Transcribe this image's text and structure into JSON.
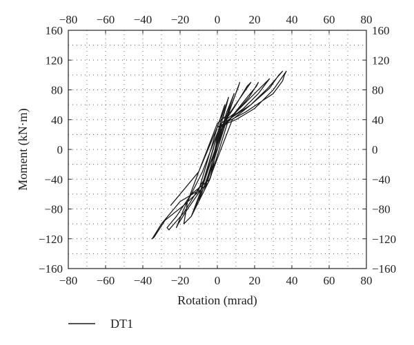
{
  "chart_data": {
    "type": "line",
    "title": "",
    "xlabel": "Rotation (mrad)",
    "ylabel": "Moment (kN·m)",
    "xlim": [
      -80,
      80
    ],
    "ylim": [
      -160,
      160
    ],
    "x_ticks": [
      -80,
      -60,
      -40,
      -20,
      0,
      20,
      40,
      60,
      80
    ],
    "y_ticks": [
      -160,
      -120,
      -80,
      -40,
      0,
      40,
      80,
      120,
      160
    ],
    "x_tick_labels": [
      "−80",
      "−60",
      "−40",
      "−20",
      "0",
      "20",
      "40",
      "60",
      "80"
    ],
    "y_tick_labels": [
      "−160",
      "−120",
      "−80",
      "−40",
      "0",
      "40",
      "80",
      "120",
      "160"
    ],
    "grid": "dotted",
    "legend_position": "bottom-left",
    "series": [
      {
        "name": "DT1",
        "color": "#1a1a1a",
        "x": [
          0,
          2,
          4,
          3,
          0,
          -2,
          -4,
          -3,
          0,
          4,
          6,
          5,
          1,
          -4,
          -7,
          -6,
          -2,
          5,
          9,
          8,
          3,
          -5,
          -10,
          -9,
          -5,
          0,
          7,
          12,
          11,
          6,
          -4,
          -12,
          -14,
          -10,
          -4,
          2,
          10,
          16,
          18,
          13,
          7,
          0,
          -10,
          -16,
          -18,
          -14,
          -8,
          0,
          8,
          16,
          21,
          22,
          17,
          10,
          2,
          -8,
          -18,
          -22,
          -21,
          -16,
          -9,
          0,
          10,
          20,
          26,
          28,
          22,
          14,
          5,
          -7,
          -18,
          -26,
          -27,
          -22,
          -14,
          -4,
          6,
          18,
          28,
          33,
          35,
          27,
          18,
          8,
          -5,
          -18,
          -28,
          -34,
          -35,
          -30,
          -20,
          -10,
          0,
          15,
          30,
          35,
          36,
          37,
          30,
          20,
          10,
          0,
          -10,
          -20,
          -25
        ],
        "y": [
          30,
          45,
          60,
          50,
          20,
          -20,
          -40,
          -30,
          10,
          55,
          70,
          60,
          25,
          -30,
          -55,
          -45,
          -10,
          50,
          75,
          68,
          30,
          -35,
          -70,
          -60,
          -40,
          0,
          55,
          90,
          82,
          50,
          -20,
          -80,
          -90,
          -70,
          -40,
          30,
          60,
          85,
          90,
          72,
          50,
          35,
          -30,
          -70,
          -100,
          -90,
          -50,
          20,
          45,
          70,
          85,
          90,
          70,
          50,
          35,
          -30,
          -80,
          -105,
          -100,
          -80,
          -55,
          20,
          50,
          75,
          90,
          95,
          75,
          55,
          38,
          -40,
          -85,
          -108,
          -105,
          -90,
          -60,
          -40,
          40,
          60,
          82,
          100,
          105,
          82,
          60,
          40,
          -45,
          -75,
          -95,
          -118,
          -120,
          -100,
          -70,
          -55,
          30,
          50,
          75,
          92,
          100,
          105,
          80,
          55,
          40,
          30,
          -30,
          -60,
          -75
        ]
      }
    ]
  }
}
